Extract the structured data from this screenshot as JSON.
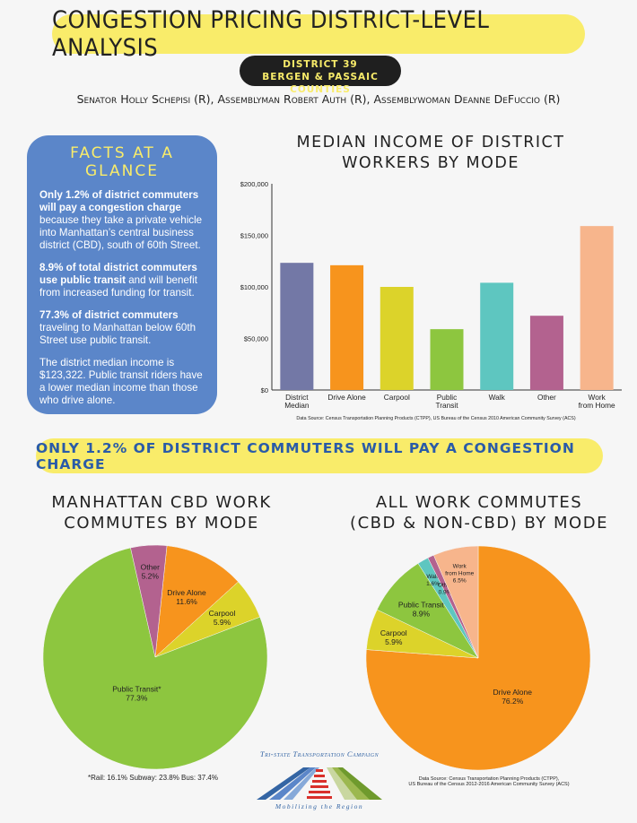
{
  "header": {
    "title": "CONGESTION PRICING DISTRICT-LEVEL ANALYSIS",
    "district_line1": "DISTRICT 39",
    "district_line2": "BERGEN & PASSAIC COUNTIES",
    "legislators": "Senator Holly Schepisi (R),  Assemblyman Robert Auth (R),  Assemblywoman Deanne DeFuccio (R)"
  },
  "facts": {
    "heading": "FACTS AT A GLANCE",
    "f1_bold": "Only 1.2% of district commuters will pay a congestion charge",
    "f1_rest": " because they take a private vehicle into Manhattan’s central business district (CBD), south of 60th Street.",
    "f2_bold": "8.9% of total district commuters use public transit",
    "f2_rest": " and will benefit from increased funding for transit.",
    "f3_bold": "77.3% of district commuters",
    "f3_rest": " traveling to Manhattan below 60th Street use public transit.",
    "f4": "The district median income is $123,322. Public transit riders have a lower median income than those who drive alone."
  },
  "bar_title_line1": "MEDIAN INCOME OF DISTRICT",
  "bar_title_line2": "WORKERS BY MODE",
  "bar_source": "Data Source: Census Transportation Planning Products (CTPP), US Bureau of the Census 2010 American Community Survey (ACS)",
  "banner": "ONLY 1.2% OF DISTRICT COMMUTERS WILL PAY A CONGESTION CHARGE",
  "pie1_title_line1": "MANHATTAN CBD WORK",
  "pie1_title_line2": "COMMUTES BY MODE",
  "pie2_title_line1": "ALL WORK COMMUTES",
  "pie2_title_line2": "(CBD & NON-CBD) BY MODE",
  "pie1_note": "*Rail: 16.1%  Subway: 23.8%  Bus: 37.4%",
  "pie2_source_line1": "Data Source: Census Transportation Planning Products (CTPP),",
  "pie2_source_line2": "US Bureau of the Census 2012-2016 American Community Survey (ACS)",
  "logo": {
    "top": "Tri-state Transportation Campaign",
    "bottom": "Mobilizing the Region"
  },
  "colors": {
    "district_median": "#7378a6",
    "drive_alone": "#f7941d",
    "carpool": "#dcd32a",
    "public_transit": "#8dc63f",
    "walk": "#5ec6c0",
    "other": "#b3628f",
    "work_from_home": "#f7b58c"
  },
  "chart_data": [
    {
      "type": "bar",
      "title": "MEDIAN INCOME OF DISTRICT WORKERS BY MODE",
      "categories": [
        "District Median",
        "Drive Alone",
        "Carpool",
        "Public Transit",
        "Walk",
        "Other",
        "Work from Home"
      ],
      "category_lines": [
        [
          "District",
          "Median"
        ],
        [
          "Drive Alone"
        ],
        [
          "Carpool"
        ],
        [
          "Public",
          "Transit"
        ],
        [
          "Walk"
        ],
        [
          "Other"
        ],
        [
          "Work",
          "from Home"
        ]
      ],
      "values": [
        123322,
        121000,
        100000,
        59000,
        104000,
        72000,
        159000
      ],
      "ylim": [
        0,
        200000
      ],
      "yticks": [
        0,
        50000,
        100000,
        150000,
        200000
      ],
      "ytick_labels": [
        "$0",
        "$50,000",
        "$100,000",
        "$150,000",
        "$200,000"
      ],
      "grid": false,
      "legend": "none"
    },
    {
      "type": "pie",
      "title": "MANHATTAN CBD WORK COMMUTES BY MODE",
      "slices": [
        {
          "label": "Drive Alone",
          "value": 11.6,
          "value_label": "11.6%",
          "color": "#f7941d"
        },
        {
          "label": "Carpool",
          "value": 5.9,
          "value_label": "5.9%",
          "color": "#dcd32a"
        },
        {
          "label": "Public Transit*",
          "value": 77.3,
          "value_label": "77.3%",
          "color": "#8dc63f"
        },
        {
          "label": "Other",
          "value": 5.2,
          "value_label": "5.2%",
          "color": "#b3628f"
        }
      ]
    },
    {
      "type": "pie",
      "title": "ALL WORK COMMUTES (CBD & NON-CBD) BY MODE",
      "slices": [
        {
          "label": "Drive Alone",
          "value": 76.2,
          "value_label": "76.2%",
          "color": "#f7941d"
        },
        {
          "label": "Carpool",
          "value": 5.9,
          "value_label": "5.9%",
          "color": "#dcd32a"
        },
        {
          "label": "Public Transit",
          "value": 8.9,
          "value_label": "8.9%",
          "color": "#8dc63f"
        },
        {
          "label": "Walk",
          "value": 1.6,
          "value_label": "1.6%",
          "color": "#5ec6c0"
        },
        {
          "label": "Other",
          "value": 0.9,
          "value_label": "0.9%",
          "color": "#b3628f"
        },
        {
          "label": "Work from Home",
          "value": 6.5,
          "value_label": "6.5%",
          "color": "#f7b58c"
        }
      ]
    }
  ]
}
